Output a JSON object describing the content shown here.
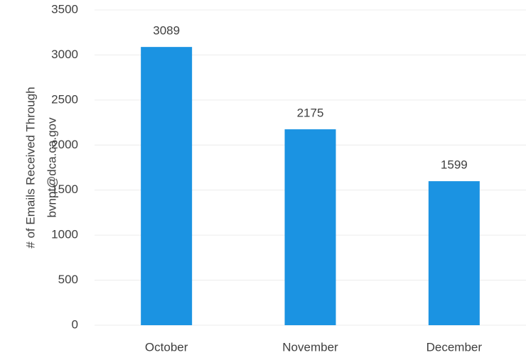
{
  "chart_data": {
    "type": "bar",
    "ylabel": [
      "# of Emails Received Through",
      "bvnpt@dca.ca.gov"
    ],
    "categories": [
      "October",
      "November",
      "December"
    ],
    "values": [
      3089,
      2175,
      1599
    ],
    "color": "#1b93e2",
    "ylim": [
      0,
      3500
    ],
    "yticks": [
      0,
      500,
      1000,
      1500,
      2000,
      2500,
      3000,
      3500
    ],
    "grid": true,
    "data_labels": true
  }
}
